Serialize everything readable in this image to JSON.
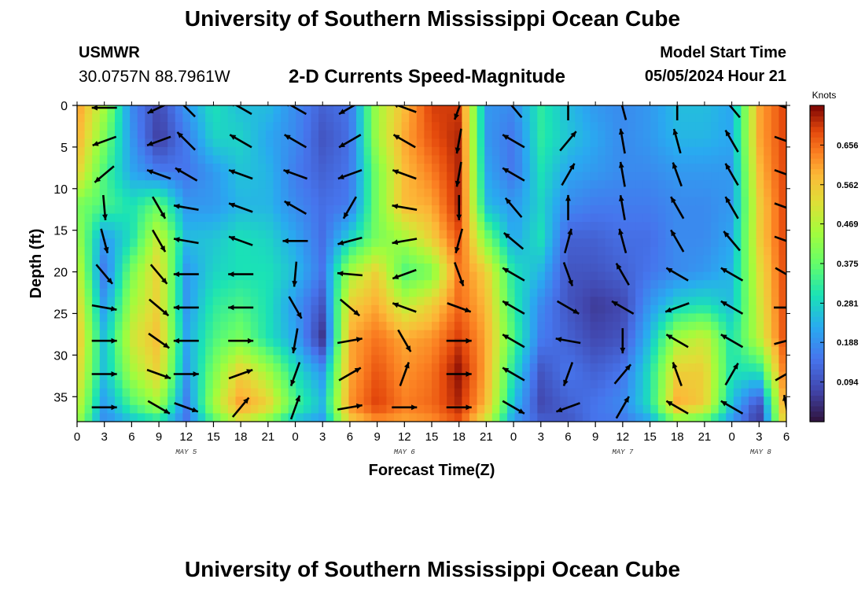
{
  "header": {
    "title": "University of Southern Mississippi Ocean Cube",
    "station": "USMWR",
    "coordinates": "30.0757N  88.7961W",
    "plot_title": "2-D Currents Speed-Magnitude",
    "model_start_label": "Model Start Time",
    "model_start_value": "05/05/2024 Hour 21"
  },
  "footer": {
    "title": "University of Southern Mississippi Ocean Cube"
  },
  "chart_data": {
    "type": "heatmap",
    "title": "2-D Currents Speed-Magnitude",
    "xlabel": "Forecast Time(Z)",
    "ylabel": "Depth (ft)",
    "x_tick_labels": [
      "0",
      "3",
      "6",
      "9",
      "12",
      "15",
      "18",
      "21",
      "0",
      "3",
      "6",
      "9",
      "12",
      "15",
      "18",
      "21",
      "0",
      "3",
      "6",
      "9",
      "12",
      "15",
      "18",
      "21",
      "0",
      "3",
      "6"
    ],
    "date_labels": [
      {
        "label": "MAY 5",
        "at_hour": 12
      },
      {
        "label": "MAY 6",
        "at_hour": 36
      },
      {
        "label": "MAY 7",
        "at_hour": 60
      },
      {
        "label": "MAY 8",
        "at_hour": 75
      }
    ],
    "xlim_hours": [
      0,
      78
    ],
    "y_ticks": [
      0,
      5,
      10,
      15,
      20,
      25,
      30,
      35
    ],
    "ylim": [
      0,
      38
    ],
    "colorbar": {
      "units": "Knots",
      "ticks": [
        "0.656",
        "0.562",
        "0.469",
        "0.375",
        "0.281",
        "0.188",
        "0.094"
      ],
      "range": [
        0.0,
        0.75
      ]
    },
    "speed_field": {
      "description": "Current speed (knots) by forecast hour and depth (ft), approximate",
      "hours": [
        0,
        3,
        6,
        9,
        12,
        15,
        18,
        21,
        24,
        27,
        30,
        33,
        36,
        39,
        42,
        45,
        48,
        51,
        54,
        57,
        60,
        63,
        66,
        69,
        72,
        75,
        78
      ],
      "depths": [
        0,
        4,
        8,
        12,
        16,
        20,
        24,
        28,
        32,
        36,
        38
      ],
      "values": [
        [
          0.62,
          0.45,
          0.18,
          0.08,
          0.2,
          0.3,
          0.25,
          0.25,
          0.18,
          0.12,
          0.15,
          0.45,
          0.58,
          0.7,
          0.7,
          0.2,
          0.18,
          0.32,
          0.25,
          0.2,
          0.18,
          0.2,
          0.25,
          0.25,
          0.22,
          0.6,
          0.7
        ],
        [
          0.6,
          0.4,
          0.2,
          0.06,
          0.16,
          0.28,
          0.28,
          0.22,
          0.18,
          0.1,
          0.14,
          0.45,
          0.6,
          0.68,
          0.72,
          0.2,
          0.15,
          0.32,
          0.26,
          0.22,
          0.18,
          0.2,
          0.24,
          0.24,
          0.22,
          0.6,
          0.7
        ],
        [
          0.55,
          0.35,
          0.22,
          0.16,
          0.15,
          0.2,
          0.26,
          0.24,
          0.16,
          0.12,
          0.15,
          0.4,
          0.58,
          0.64,
          0.72,
          0.22,
          0.15,
          0.3,
          0.22,
          0.2,
          0.18,
          0.18,
          0.2,
          0.2,
          0.2,
          0.58,
          0.7
        ],
        [
          0.4,
          0.35,
          0.3,
          0.38,
          0.2,
          0.2,
          0.24,
          0.24,
          0.18,
          0.14,
          0.16,
          0.4,
          0.58,
          0.6,
          0.72,
          0.25,
          0.2,
          0.28,
          0.18,
          0.16,
          0.16,
          0.16,
          0.18,
          0.18,
          0.2,
          0.55,
          0.7
        ],
        [
          0.45,
          0.2,
          0.3,
          0.5,
          0.25,
          0.26,
          0.3,
          0.28,
          0.22,
          0.14,
          0.28,
          0.4,
          0.45,
          0.55,
          0.68,
          0.4,
          0.22,
          0.3,
          0.12,
          0.12,
          0.14,
          0.14,
          0.18,
          0.18,
          0.22,
          0.55,
          0.7
        ],
        [
          0.5,
          0.15,
          0.4,
          0.55,
          0.2,
          0.28,
          0.3,
          0.3,
          0.25,
          0.15,
          0.45,
          0.55,
          0.35,
          0.4,
          0.65,
          0.55,
          0.3,
          0.24,
          0.1,
          0.1,
          0.12,
          0.15,
          0.18,
          0.2,
          0.24,
          0.52,
          0.7
        ],
        [
          0.55,
          0.2,
          0.45,
          0.55,
          0.2,
          0.32,
          0.35,
          0.3,
          0.2,
          0.1,
          0.55,
          0.6,
          0.48,
          0.55,
          0.66,
          0.58,
          0.32,
          0.18,
          0.1,
          0.06,
          0.08,
          0.2,
          0.28,
          0.3,
          0.25,
          0.5,
          0.7
        ],
        [
          0.58,
          0.25,
          0.5,
          0.58,
          0.22,
          0.35,
          0.4,
          0.3,
          0.22,
          0.05,
          0.6,
          0.65,
          0.6,
          0.62,
          0.7,
          0.6,
          0.35,
          0.16,
          0.12,
          0.08,
          0.1,
          0.25,
          0.45,
          0.5,
          0.3,
          0.48,
          0.7
        ],
        [
          0.55,
          0.25,
          0.45,
          0.55,
          0.2,
          0.4,
          0.55,
          0.45,
          0.3,
          0.2,
          0.6,
          0.68,
          0.62,
          0.65,
          0.74,
          0.6,
          0.3,
          0.1,
          0.15,
          0.12,
          0.15,
          0.3,
          0.55,
          0.55,
          0.3,
          0.3,
          0.68
        ],
        [
          0.5,
          0.2,
          0.35,
          0.45,
          0.16,
          0.45,
          0.62,
          0.55,
          0.35,
          0.25,
          0.62,
          0.7,
          0.64,
          0.66,
          0.72,
          0.58,
          0.25,
          0.08,
          0.12,
          0.15,
          0.18,
          0.3,
          0.6,
          0.55,
          0.25,
          0.08,
          0.65
        ],
        [
          0.45,
          0.18,
          0.25,
          0.3,
          0.15,
          0.35,
          0.5,
          0.4,
          0.25,
          0.2,
          0.55,
          0.62,
          0.6,
          0.62,
          0.68,
          0.5,
          0.2,
          0.12,
          0.1,
          0.15,
          0.15,
          0.22,
          0.4,
          0.35,
          0.2,
          0.05,
          0.6
        ]
      ]
    },
    "vectors": {
      "description": "Current direction arrows (direction toward, degrees clockwise from north, screen-up) at hour/depth grid",
      "hours": [
        3,
        9,
        12,
        18,
        24,
        30,
        36,
        42,
        48,
        54,
        60,
        66,
        72,
        78
      ],
      "depths": [
        0,
        4,
        8,
        12,
        16,
        20,
        24,
        28,
        32,
        36
      ],
      "direction_deg": [
        [
          270,
          245,
          315,
          300,
          300,
          240,
          290,
          200,
          320,
          0,
          345,
          0,
          320,
          110
        ],
        [
          250,
          250,
          315,
          300,
          300,
          240,
          300,
          190,
          300,
          40,
          350,
          345,
          330,
          110
        ],
        [
          230,
          290,
          300,
          290,
          290,
          250,
          290,
          190,
          300,
          30,
          350,
          340,
          330,
          110
        ],
        [
          175,
          150,
          280,
          290,
          300,
          210,
          280,
          180,
          320,
          0,
          350,
          330,
          330,
          110
        ],
        [
          165,
          150,
          280,
          290,
          270,
          255,
          260,
          195,
          310,
          15,
          345,
          330,
          320,
          110
        ],
        [
          140,
          140,
          270,
          270,
          185,
          275,
          250,
          160,
          300,
          160,
          330,
          300,
          300,
          120
        ],
        [
          100,
          130,
          270,
          270,
          150,
          130,
          290,
          110,
          300,
          120,
          300,
          250,
          300,
          90
        ],
        [
          90,
          125,
          270,
          90,
          190,
          80,
          150,
          90,
          300,
          280,
          180,
          300,
          300,
          75
        ],
        [
          90,
          110,
          90,
          70,
          200,
          60,
          20,
          90,
          300,
          200,
          40,
          340,
          30,
          60
        ],
        [
          90,
          120,
          110,
          40,
          20,
          80,
          90,
          90,
          120,
          250,
          30,
          300,
          300,
          350
        ]
      ]
    }
  }
}
